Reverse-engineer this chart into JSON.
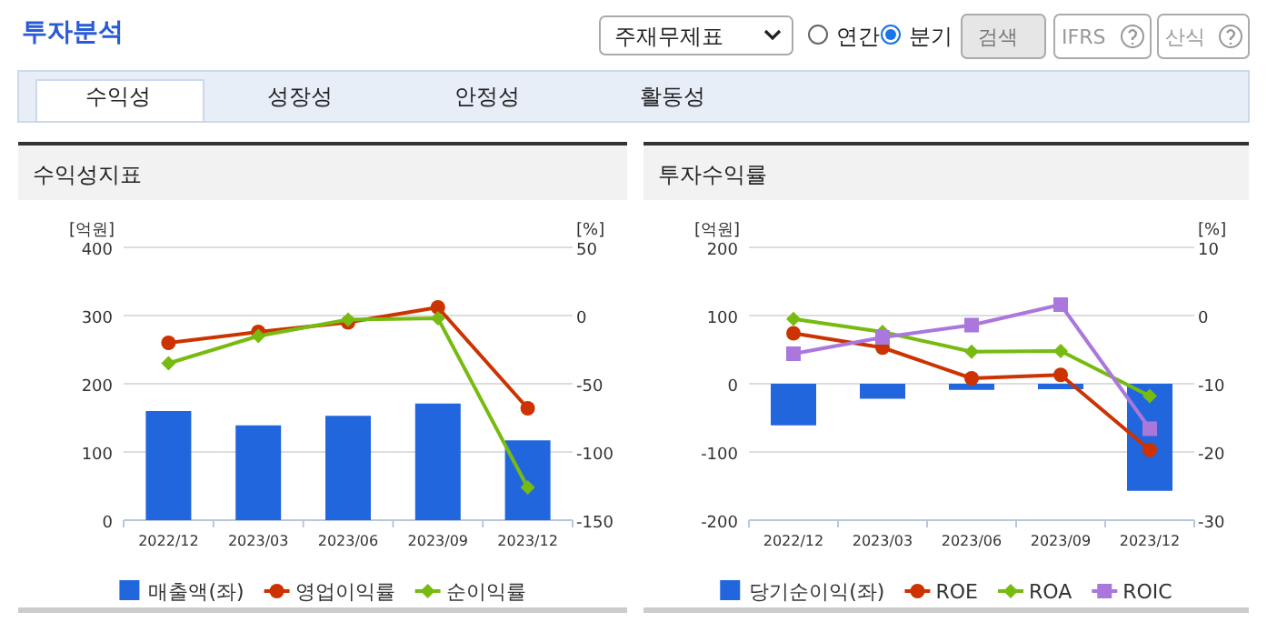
{
  "chart_data": [
    {
      "type": "other",
      "annotations": [
        "투자분석",
        "주재무제표",
        "연간",
        "분기",
        "검색",
        "IFRS",
        "산식",
        "수익성",
        "성장성",
        "안정성",
        "활동성"
      ]
    },
    {
      "type": "bar",
      "title": "수익성지표",
      "ylabel": "[억원]",
      "y2label": "[%]",
      "categories": [
        "2022/12",
        "2023/03",
        "2023/06",
        "2023/09",
        "2023/12"
      ],
      "ylim": [
        0,
        400
      ],
      "yticks": [
        0,
        100,
        200,
        300,
        400
      ],
      "y2lim": [
        -150,
        50
      ],
      "y2ticks": [
        -150,
        -100,
        -50,
        0,
        50
      ],
      "grid": "y",
      "legend": "bottom",
      "series": [
        {
          "name": "매출액(좌)",
          "type": "bar",
          "color": "#2266dd",
          "values": [
            160,
            139,
            153,
            171,
            117
          ]
        },
        {
          "name": "영업이익률",
          "type": "line",
          "axis": "y2",
          "marker": "circle",
          "color": "#cc3300",
          "values": [
            -20,
            -12,
            -5,
            6,
            -68
          ]
        },
        {
          "name": "순이익률",
          "type": "line",
          "axis": "y2",
          "marker": "diamond",
          "color": "#77bb11",
          "values": [
            -35,
            -15,
            -3,
            -2,
            -126
          ]
        }
      ]
    },
    {
      "type": "bar",
      "title": "투자수익률",
      "ylabel": "[억원]",
      "y2label": "[%]",
      "categories": [
        "2022/12",
        "2023/03",
        "2023/06",
        "2023/09",
        "2023/12"
      ],
      "ylim": [
        -200,
        200
      ],
      "yticks": [
        -200,
        -100,
        0,
        100,
        200
      ],
      "y2lim": [
        -30,
        10
      ],
      "y2ticks": [
        -30,
        -20,
        -10,
        0,
        10
      ],
      "grid": "y",
      "legend": "bottom",
      "series": [
        {
          "name": "당기순이익(좌)",
          "type": "bar",
          "color": "#2266dd",
          "values": [
            -61,
            -22,
            -9,
            -8,
            -157
          ]
        },
        {
          "name": "ROE",
          "type": "line",
          "axis": "y2",
          "marker": "circle",
          "color": "#cc3300",
          "values": [
            -2.6,
            -4.7,
            -9.2,
            -8.7,
            -19.7
          ]
        },
        {
          "name": "ROA",
          "type": "line",
          "axis": "y2",
          "marker": "diamond",
          "color": "#77bb11",
          "values": [
            -0.5,
            -2.4,
            -5.3,
            -5.2,
            -11.8
          ]
        },
        {
          "name": "ROIC",
          "type": "line",
          "axis": "y2",
          "marker": "square",
          "color": "#aa77dd",
          "values": [
            -5.6,
            -3.2,
            -1.4,
            1.6,
            -16.6
          ]
        }
      ]
    }
  ]
}
